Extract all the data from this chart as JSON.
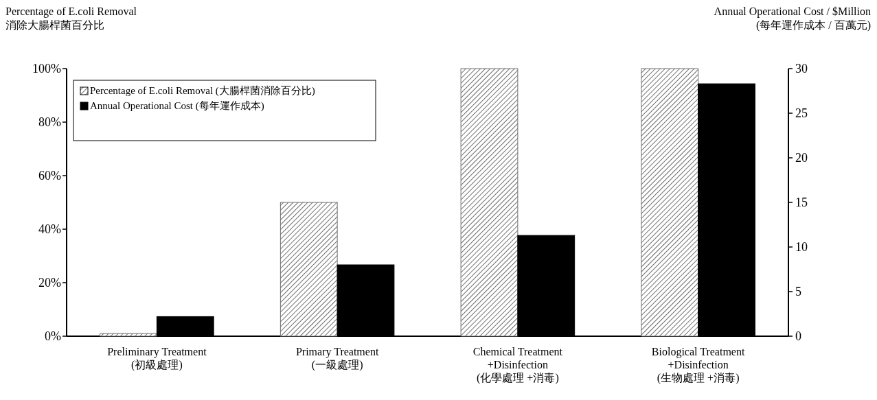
{
  "chart_data": {
    "type": "bar",
    "ylabel": "Percentage of E.coli Removal\n消除大腸桿菌百分比",
    "y2label": "Annual Operational Cost / $Million\n(每年運作成本 / 百萬元)",
    "categories": [
      "Preliminary Treatment\n(初級處理)",
      "Primary Treatment\n(一級處理)",
      "Chemical Treatment\n+Disinfection\n(化學處理 +消毒)",
      "Biological Treatment\n+Disinfection\n(生物處理 +消毒)"
    ],
    "series": [
      {
        "name": "Percentage of E.coli Removal (大腸桿菌消除百分比)",
        "color": "#6e6e6e",
        "values": [
          1,
          50,
          100,
          100
        ]
      },
      {
        "name": "Annual Operational Cost (每年運作成本)",
        "color": "#000000",
        "axis": "y2",
        "values": [
          2.2,
          8,
          11.3,
          28.3
        ]
      }
    ],
    "ylim": [
      0,
      100
    ],
    "yticks": [
      {
        "value": 0,
        "label": "0%"
      },
      {
        "value": 20,
        "label": "20%"
      },
      {
        "value": 40,
        "label": "40%"
      },
      {
        "value": 60,
        "label": "60%"
      },
      {
        "value": 80,
        "label": "80%"
      },
      {
        "value": 100,
        "label": "100%"
      }
    ],
    "y2lim": [
      0,
      30
    ],
    "y2ticks": [
      0,
      5,
      10,
      15,
      20,
      25,
      30
    ],
    "legend": "top left",
    "grid": false
  }
}
